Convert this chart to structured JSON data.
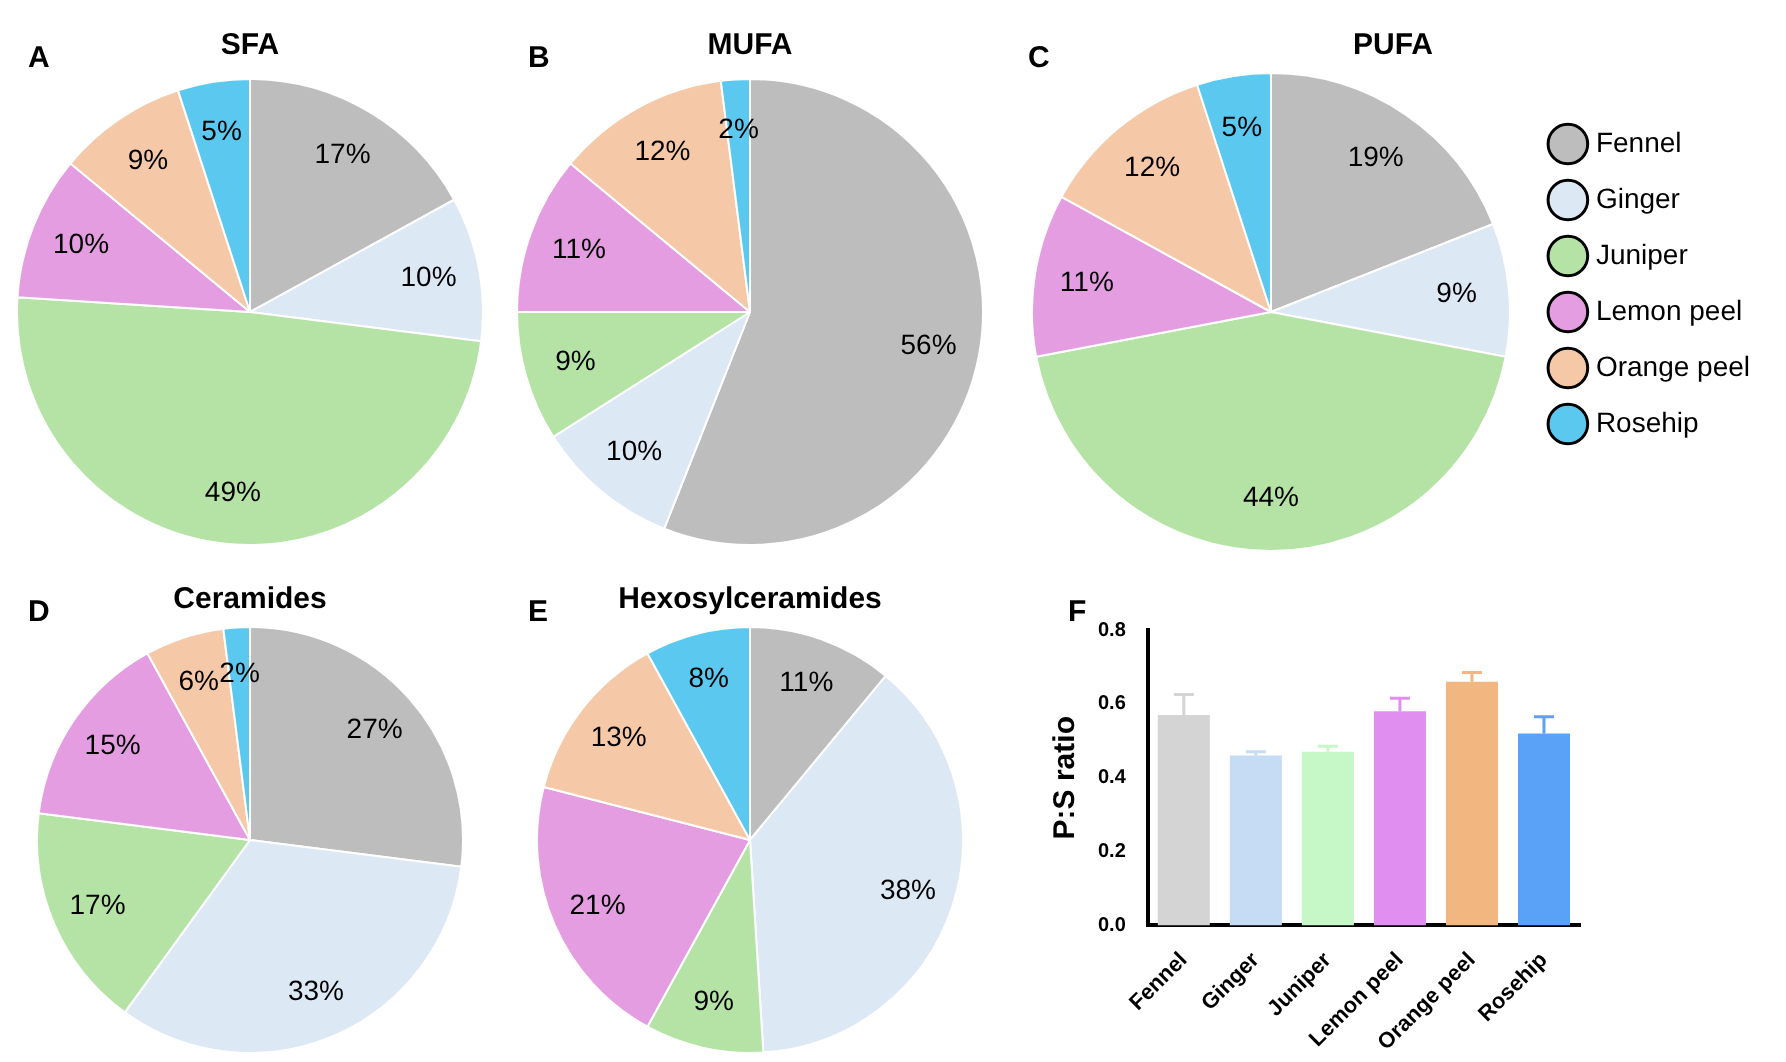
{
  "chart_data": [
    {
      "type": "pie",
      "title": "SFA",
      "annotations": [
        "A"
      ],
      "categories": [
        null,
        null,
        null,
        null,
        null,
        null
      ],
      "values": [
        17,
        10,
        49,
        10,
        9,
        5
      ],
      "value_labels": [
        "17%",
        "10%",
        "49%",
        "10%",
        "9%",
        "5%"
      ],
      "colors": [
        "#bdbdbd",
        "#dde8f5",
        "#b5e3a5",
        "#e39de0",
        "#f5c8a8",
        "#5bc8f0"
      ],
      "legend": false
    },
    {
      "type": "pie",
      "title": "MUFA",
      "annotations": [
        "B"
      ],
      "categories": [
        null,
        null,
        null,
        null,
        null,
        null
      ],
      "values": [
        56,
        10,
        9,
        11,
        12,
        2
      ],
      "value_labels": [
        "56%",
        "10%",
        "9%",
        "11%",
        "12%",
        "2%"
      ],
      "colors": [
        "#bdbdbd",
        "#dde8f5",
        "#b5e3a5",
        "#e39de0",
        "#f5c8a8",
        "#5bc8f0"
      ],
      "legend": false
    },
    {
      "type": "pie",
      "title": "PUFA",
      "annotations": [
        "C"
      ],
      "categories": [
        "Fennel",
        "Ginger",
        "Juniper",
        "Lemon peel",
        "Orange peel",
        "Rosehip"
      ],
      "values": [
        19,
        9,
        44,
        11,
        12,
        5
      ],
      "value_labels": [
        "19%",
        "9%",
        "44%",
        "11%",
        "12%",
        "5%"
      ],
      "colors": [
        "#bdbdbd",
        "#dde8f5",
        "#b5e3a5",
        "#e39de0",
        "#f5c8a8",
        "#5bc8f0"
      ],
      "legend": "right"
    },
    {
      "type": "pie",
      "title": "Ceramides",
      "annotations": [
        "D"
      ],
      "categories": [
        null,
        null,
        null,
        null,
        null,
        null
      ],
      "values": [
        27,
        33,
        17,
        15,
        6,
        2
      ],
      "value_labels": [
        "27%",
        "33%",
        "17%",
        "15%",
        "6%",
        "2%"
      ],
      "colors": [
        "#bdbdbd",
        "#dde8f5",
        "#b5e3a5",
        "#e39de0",
        "#f5c8a8",
        "#5bc8f0"
      ],
      "legend": false
    },
    {
      "type": "pie",
      "title": "Hexosylceramides",
      "annotations": [
        "E"
      ],
      "categories": [
        null,
        null,
        null,
        null,
        null,
        null
      ],
      "values": [
        11,
        38,
        9,
        21,
        13,
        8
      ],
      "value_labels": [
        "11%",
        "38%",
        "9%",
        "21%",
        "13%",
        "8%"
      ],
      "colors": [
        "#bdbdbd",
        "#dde8f5",
        "#b5e3a5",
        "#e39de0",
        "#f5c8a8",
        "#5bc8f0"
      ],
      "legend": false
    },
    {
      "type": "bar",
      "annotations": [
        "F"
      ],
      "ylabel": "P:S ratio",
      "categories": [
        "Fennel",
        "Ginger",
        "Juniper",
        "Lemon peel",
        "Orange peel",
        "Rosehip"
      ],
      "values": [
        0.57,
        0.46,
        0.47,
        0.58,
        0.66,
        0.52
      ],
      "errors": [
        [
          0.57,
          0.625
        ],
        [
          0.46,
          0.47
        ],
        [
          0.47,
          0.485
        ],
        [
          0.58,
          0.615
        ],
        [
          0.66,
          0.685
        ],
        [
          0.52,
          0.565
        ]
      ],
      "colors": [
        "#d4d4d4",
        "#c6dcf5",
        "#c6f7c6",
        "#e08ef0",
        "#f2b680",
        "#5aa2f7"
      ],
      "ylim": [
        0,
        0.8
      ],
      "yticks": [
        {
          "value": 0,
          "label": "0.0"
        },
        {
          "value": 0.2,
          "label": "0.2"
        },
        {
          "value": 0.4,
          "label": "0.4"
        },
        {
          "value": 0.6,
          "label": "0.6"
        },
        {
          "value": 0.8,
          "label": "0.8"
        }
      ],
      "grid": false,
      "legend": false
    }
  ]
}
